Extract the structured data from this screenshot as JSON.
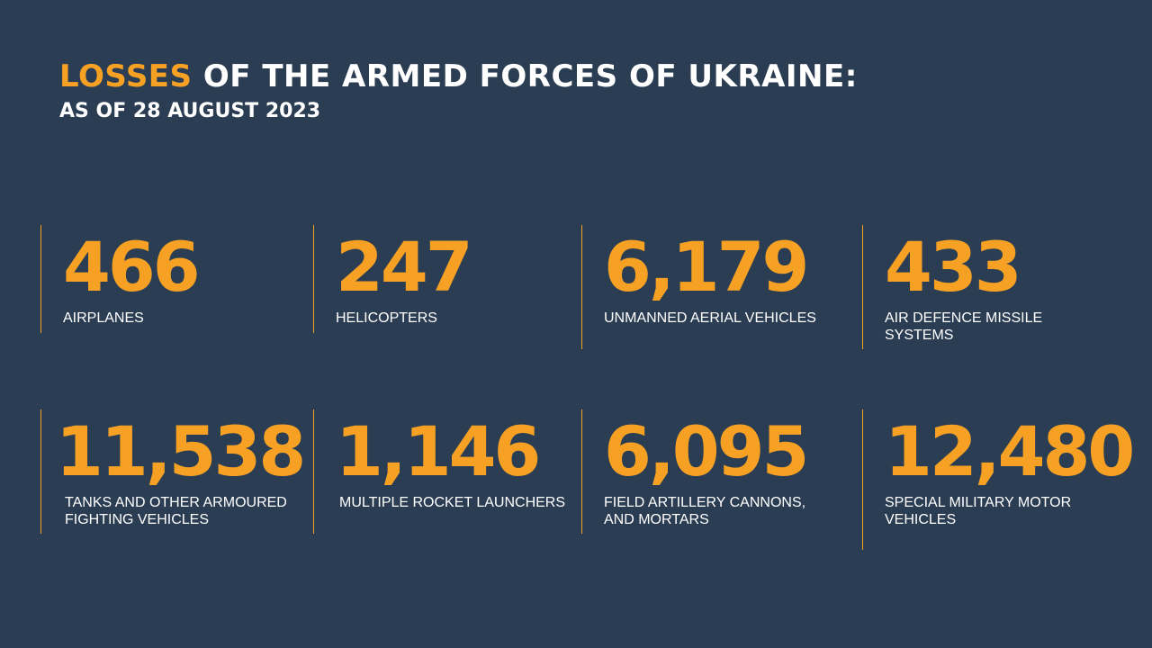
{
  "header": {
    "title_accent": "LOSSES",
    "title_rest": " OF THE ARMED FORCES OF UKRAINE:",
    "subtitle": "AS OF 28 AUGUST 2023"
  },
  "stats": [
    {
      "value": "466",
      "label": "AIRPLANES"
    },
    {
      "value": "247",
      "label": "HELICOPTERS"
    },
    {
      "value": "6,179",
      "label": "UNMANNED AERIAL VEHICLES"
    },
    {
      "value": "433",
      "label": "AIR DEFENCE MISSILE SYSTEMS"
    },
    {
      "value": "11,538",
      "label": "TANKS AND OTHER ARMOURED FIGHTING VEHICLES"
    },
    {
      "value": "1,146",
      "label": "MULTIPLE ROCKET LAUNCHERS"
    },
    {
      "value": "6,095",
      "label": "FIELD ARTILLERY CANNONS, AND MORTARS"
    },
    {
      "value": "12,480",
      "label": "SPECIAL MILITARY MOTOR VEHICLES"
    }
  ],
  "colors": {
    "background": "#2b3d53",
    "accent": "#f7a124",
    "text": "#ffffff"
  }
}
